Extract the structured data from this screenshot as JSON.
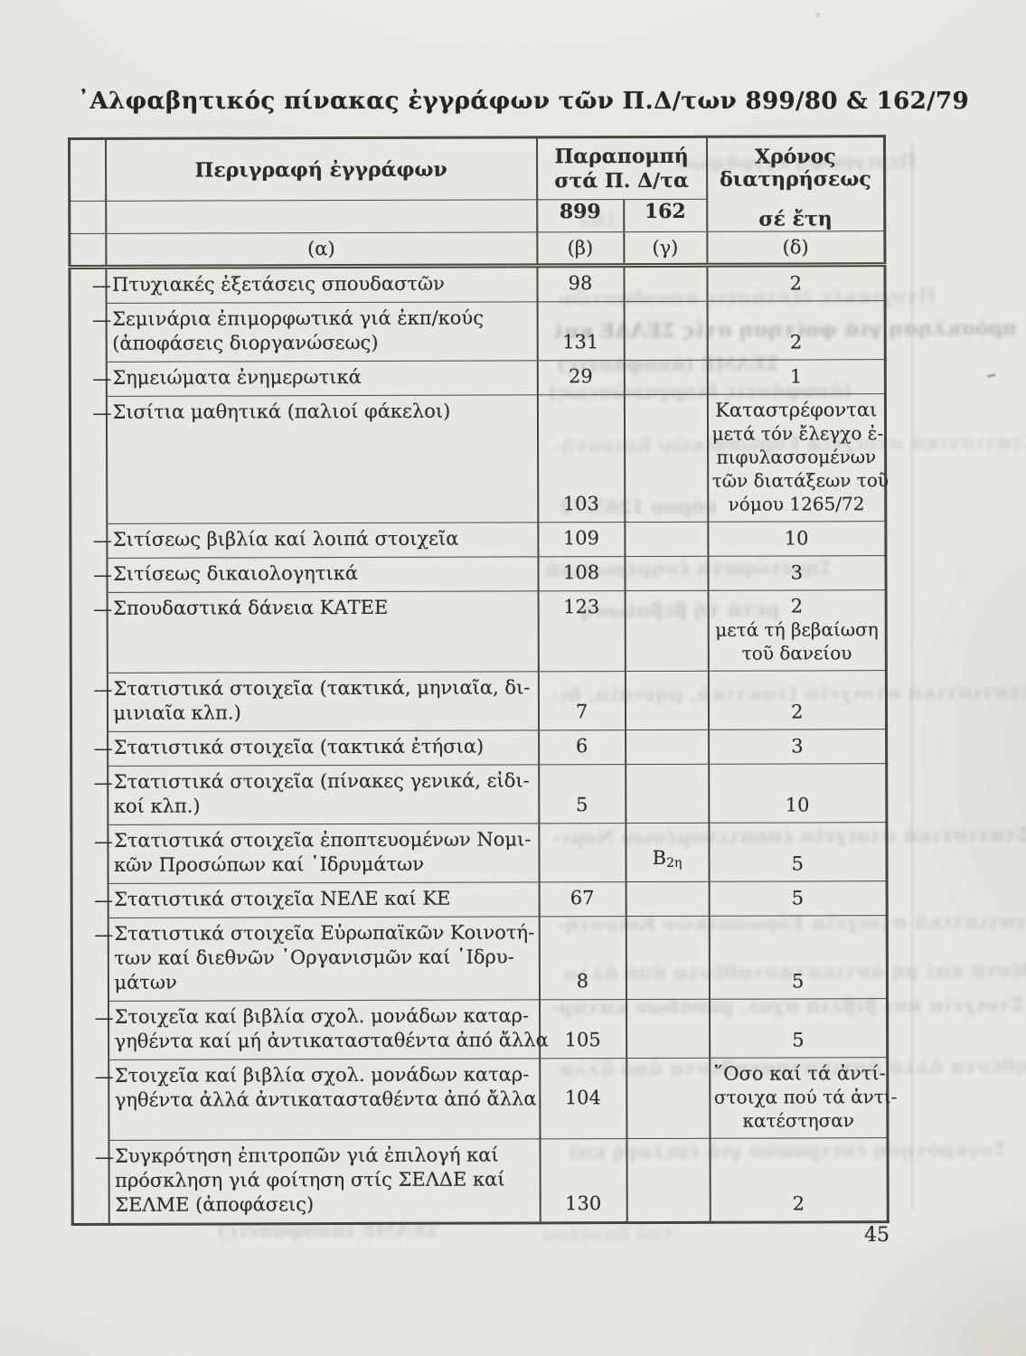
{
  "page": {
    "title": "᾿Αλφαβητικός πίνακας ἐγγράφων τῶν Π.Δ/των 899/80 & 162/79",
    "page_number": "45",
    "colors": {
      "paper": "#e9e7e1",
      "ink": "#2e2d26",
      "border": "#49463c"
    }
  },
  "table": {
    "dash_mark": "—",
    "header": {
      "col_description": "Περιγραφή ἐγγράφων",
      "col_reference_line1": "Παραπομπή",
      "col_reference_line2": "στά Π. Δ/τα",
      "col_retention_line1": "Χρόνος",
      "col_retention_line2": "διατηρήσεως",
      "sub_899": "899",
      "sub_162": "162",
      "sub_years": "σέ ἔτη",
      "letters": [
        "(α)",
        "(β)",
        "(γ)",
        "(δ)"
      ]
    },
    "rows": [
      {
        "description": [
          "Πτυχιακές ἐξετάσεις σπουδαστῶν"
        ],
        "ref899": "98",
        "ref162": "",
        "retention": [
          "2"
        ]
      },
      {
        "description": [
          "Σεμινάρια ἐπιμορφωτικά γιά ἐκπ/κούς",
          "(ἀποφάσεις διοργανώσεως)"
        ],
        "ref899": "131",
        "ref162": "",
        "retention": [
          "2"
        ]
      },
      {
        "description": [
          "Σημειώματα ἐνημερωτικά"
        ],
        "ref899": "29",
        "ref162": "",
        "retention": [
          "1"
        ]
      },
      {
        "description": [
          "Σισίτια μαθητικά (παλιοί φάκελοι)"
        ],
        "ref899": "103",
        "ref162": "",
        "retention": [
          "Καταστρέφονται",
          "μετά τόν ἔλεγχο ἐ-",
          "πιφυλασσομένων",
          "τῶν διατάξεων τοῦ",
          "νόμου 1265/72"
        ],
        "retention_va": "top",
        "ref_va": "bottom"
      },
      {
        "description": [
          "Σιτίσεως βιβλία καί λοιπά στοιχεῖα"
        ],
        "ref899": "109",
        "ref162": "",
        "retention": [
          "10"
        ]
      },
      {
        "description": [
          "Σιτίσεως δικαιολογητικά"
        ],
        "ref899": "108",
        "ref162": "",
        "retention": [
          "3"
        ]
      },
      {
        "description": [
          "Σπουδαστικά δάνεια ΚΑΤΕΕ"
        ],
        "ref899": "123",
        "ref162": "",
        "retention": [
          "2",
          "μετά τή βεβαίωση",
          "τοῦ δανείου"
        ],
        "retention_va": "top",
        "ref_va": "top"
      },
      {
        "description": [
          "Στατιστικά στοιχεῖα (τακτικά, μηνιαῖα, δι-",
          "μινιαῖα κλπ.)"
        ],
        "ref899": "7",
        "ref162": "",
        "retention": [
          "2"
        ]
      },
      {
        "description": [
          "Στατιστικά στοιχεῖα (τακτικά ἐτήσια)"
        ],
        "ref899": "6",
        "ref162": "",
        "retention": [
          "3"
        ]
      },
      {
        "description": [
          "Στατιστικά στοιχεῖα (πίνακες γενικά, εἰδι-",
          "κοί κλπ.)"
        ],
        "ref899": "5",
        "ref162": "",
        "retention": [
          "10"
        ]
      },
      {
        "description": [
          "Στατιστικά στοιχεῖα ἐποπτευομένων Νομι-",
          "κῶν Προσώπων καί ῾Ιδρυμάτων"
        ],
        "ref899": "",
        "ref162": "Β",
        "ref162_sub": "2η",
        "retention": [
          "5"
        ]
      },
      {
        "description": [
          "Στατιστικά στοιχεῖα ΝΕΛΕ καί ΚΕ"
        ],
        "ref899": "67",
        "ref162": "",
        "retention": [
          "5"
        ]
      },
      {
        "description": [
          "Στατιστικά στοιχεῖα Εὐρωπαϊκῶν Κοινοτή-",
          "των καί διεθνῶν ᾿Οργανισμῶν καί ῾Ιδρυ-",
          "μάτων"
        ],
        "ref899": "8",
        "ref162": "",
        "retention": [
          "5"
        ]
      },
      {
        "description": [
          "Στοιχεῖα καί βιβλία σχολ. μονάδων καταρ-",
          "γηθέντα καί μή ἀντικατασταθέντα ἀπό ἄλλα"
        ],
        "ref899": "105",
        "ref162": "",
        "retention": [
          "5"
        ]
      },
      {
        "description": [
          "Στοιχεῖα καί βιβλία σχολ. μονάδων καταρ-",
          "γηθέντα ἀλλά ἀντικατασταθέντα ἀπό ἄλλα"
        ],
        "ref899": "104",
        "ref162": "",
        "retention": [
          "῞Οσο καί τά ἀντί-",
          "στοιχα πού τά ἀντι-",
          "κατέστησαν"
        ],
        "retention_va": "top",
        "ref_va": "middle"
      },
      {
        "description": [
          "Συγκρότηση ἐπιτροπῶν γιά ἐπιλογή καί",
          "πρόσκληση γιά φοίτηση στίς ΣΕΛΔΕ καί",
          "ΣΕΛΜΕ (ἀποφάσεις)"
        ],
        "ref899": "130",
        "ref162": "",
        "retention": [
          "2"
        ]
      }
    ]
  }
}
